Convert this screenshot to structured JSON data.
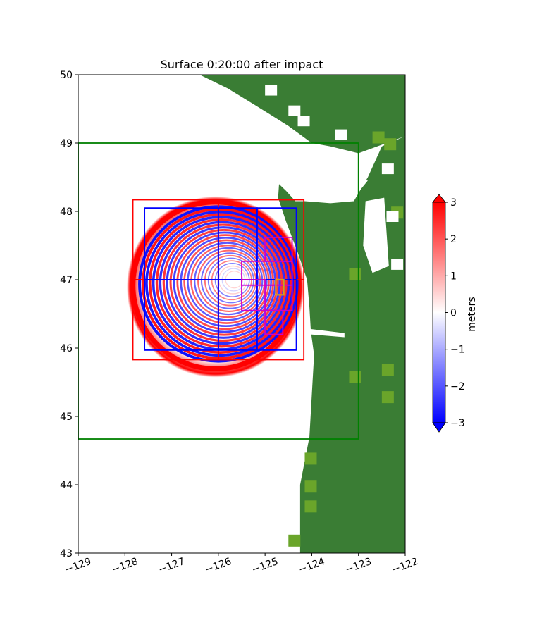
{
  "chart_data": {
    "type": "heatmap",
    "title": "Surface 0:20:00 after impact",
    "xlabel": "",
    "ylabel": "",
    "xlim": [
      -129,
      -122
    ],
    "ylim": [
      43,
      50
    ],
    "xticks": [
      -129,
      -128,
      -127,
      -126,
      -125,
      -124,
      -123,
      -122
    ],
    "yticks": [
      43,
      44,
      45,
      46,
      47,
      48,
      49,
      50
    ],
    "xtick_labels": [
      "−129",
      "−128",
      "−127",
      "−126",
      "−125",
      "−124",
      "−123",
      "−122"
    ],
    "ytick_labels": [
      "43",
      "44",
      "45",
      "46",
      "47",
      "48",
      "49",
      "50"
    ],
    "colorbar": {
      "label": "meters",
      "vmin": -3,
      "vmax": 3,
      "ticks": [
        -3,
        -2,
        -1,
        0,
        1,
        2,
        3
      ],
      "tick_labels": [
        "−3",
        "−2",
        "−1",
        "0",
        "1",
        "2",
        "3"
      ],
      "colormap": [
        "#0000ff",
        "#ffffff",
        "#ff0000"
      ],
      "extend": "both"
    },
    "impact_center": {
      "lon": -126.0,
      "lat": 47.0
    },
    "wavefront_outer_radius_deg": 1.9,
    "land_color": "#3a7d34",
    "coarse_land_color": "#6aa52a",
    "regions": [
      {
        "name": "level-2",
        "color": "#008000",
        "lon": [
          -129.0,
          -123.0
        ],
        "lat": [
          44.67,
          49.0
        ]
      },
      {
        "name": "level-3a",
        "color": "#ff0000",
        "lon": [
          -127.83,
          -126.0
        ],
        "lat": [
          45.83,
          47.0
        ]
      },
      {
        "name": "level-3b",
        "color": "#ff0000",
        "lon": [
          -127.83,
          -126.0
        ],
        "lat": [
          47.0,
          48.17
        ]
      },
      {
        "name": "level-3c",
        "color": "#ff0000",
        "lon": [
          -126.0,
          -124.17
        ],
        "lat": [
          45.83,
          47.0
        ]
      },
      {
        "name": "level-3d",
        "color": "#ff0000",
        "lon": [
          -126.0,
          -124.17
        ],
        "lat": [
          47.0,
          48.17
        ]
      },
      {
        "name": "level-4a",
        "color": "#0000ff",
        "lon": [
          -127.58,
          -126.0
        ],
        "lat": [
          45.97,
          47.0
        ]
      },
      {
        "name": "level-4b",
        "color": "#0000ff",
        "lon": [
          -127.58,
          -126.0
        ],
        "lat": [
          47.0,
          48.05
        ]
      },
      {
        "name": "level-4c",
        "color": "#0000ff",
        "lon": [
          -126.0,
          -125.17
        ],
        "lat": [
          45.97,
          47.0
        ]
      },
      {
        "name": "level-4d",
        "color": "#0000ff",
        "lon": [
          -126.0,
          -125.17
        ],
        "lat": [
          47.0,
          48.05
        ]
      },
      {
        "name": "level-4e",
        "color": "#0000ff",
        "lon": [
          -125.17,
          -124.33
        ],
        "lat": [
          45.97,
          47.0
        ]
      },
      {
        "name": "level-4f",
        "color": "#0000ff",
        "lon": [
          -125.17,
          -124.33
        ],
        "lat": [
          47.0,
          48.05
        ]
      },
      {
        "name": "level-5a",
        "color": "#cc00cc",
        "lon": [
          -125.5,
          -125.0
        ],
        "lat": [
          46.55,
          47.0
        ]
      },
      {
        "name": "level-5b",
        "color": "#cc00cc",
        "lon": [
          -125.0,
          -124.62
        ],
        "lat": [
          46.2,
          46.55
        ]
      },
      {
        "name": "level-5c",
        "color": "#cc00cc",
        "lon": [
          -125.0,
          -124.42
        ],
        "lat": [
          46.55,
          46.92
        ]
      },
      {
        "name": "level-5d",
        "color": "#cc00cc",
        "lon": [
          -125.5,
          -124.42
        ],
        "lat": [
          46.92,
          47.27
        ]
      },
      {
        "name": "level-5e",
        "color": "#cc00cc",
        "lon": [
          -125.0,
          -124.42
        ],
        "lat": [
          47.27,
          47.62
        ]
      },
      {
        "name": "level-6",
        "color": "#d4a017",
        "lon": [
          -124.77,
          -124.6
        ],
        "lat": [
          46.78,
          47.0
        ]
      }
    ]
  }
}
